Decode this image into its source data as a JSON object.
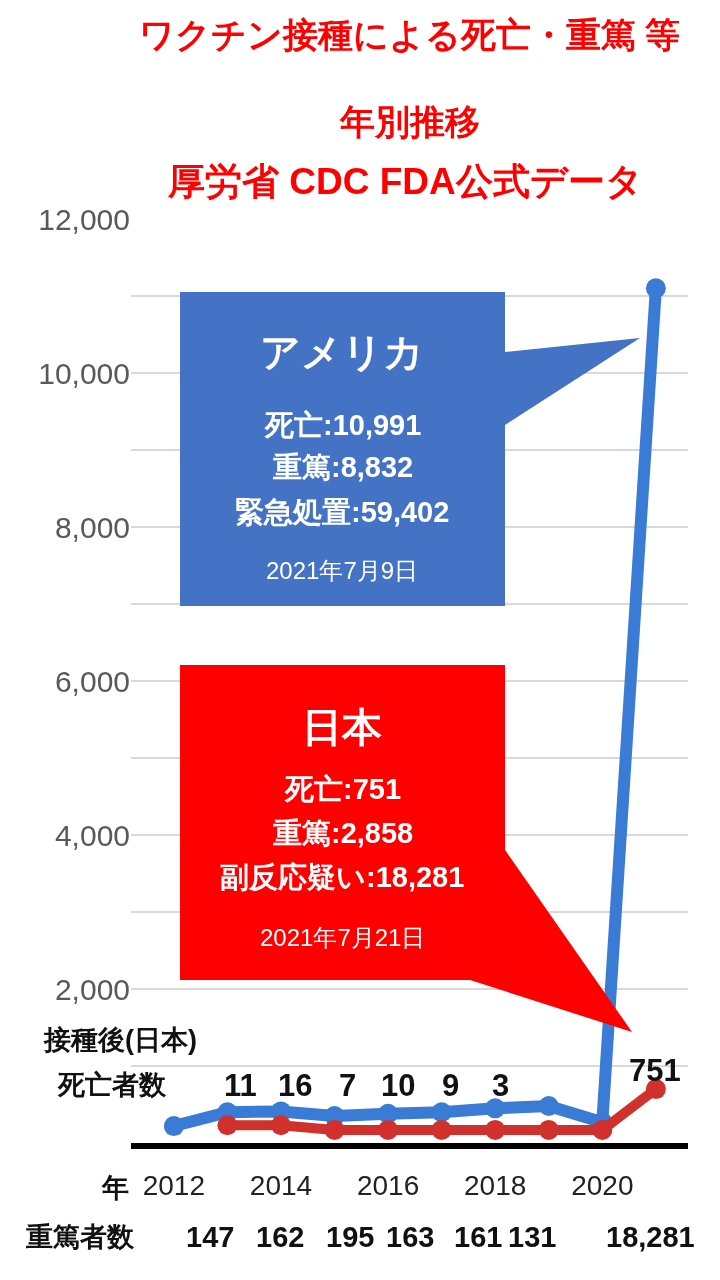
{
  "chart_data": {
    "type": "line",
    "title": "ワクチン接種による死亡・重篤 等",
    "subtitle": "年別推移",
    "x": [
      2012,
      2013,
      2014,
      2015,
      2016,
      2017,
      2018,
      2019,
      2020,
      2021
    ],
    "series": [
      {
        "color": "#3a7bd5",
        "values": [
          220,
          400,
          410,
          350,
          380,
          400,
          450,
          480,
          270,
          11100
        ]
      },
      {
        "color": "#d0312d",
        "values": [
          null,
          230,
          230,
          170,
          170,
          170,
          170,
          170,
          170,
          700
        ]
      }
    ],
    "xlim": [
      2011.2,
      2021.6
    ],
    "xticks": [
      {
        "value": 2012,
        "label": "2012"
      },
      {
        "value": 2014,
        "label": "2014"
      },
      {
        "value": 2016,
        "label": "2016"
      },
      {
        "value": 2018,
        "label": "2018"
      },
      {
        "value": 2020,
        "label": "2020"
      }
    ],
    "ylim": [
      0,
      12000
    ],
    "yticks": [
      {
        "value": 0,
        "label": null
      },
      {
        "value": 1000,
        "label": null
      },
      {
        "value": 2000,
        "label": "2,000"
      },
      {
        "value": 3000,
        "label": null
      },
      {
        "value": 4000,
        "label": "4,000"
      },
      {
        "value": 5000,
        "label": null
      },
      {
        "value": 6000,
        "label": "6,000"
      },
      {
        "value": 7000,
        "label": null
      },
      {
        "value": 8000,
        "label": "8,000"
      },
      {
        "value": 9000,
        "label": null
      },
      {
        "value": 10000,
        "label": "10,000"
      },
      {
        "value": 11000,
        "label": null
      },
      {
        "value": 12000,
        "label": "12,000"
      }
    ],
    "grid": "y",
    "marker": "circle",
    "line_style": "solid",
    "annotations": [
      "厚労省 CDC FDA公式データ",
      "アメリカ",
      "死亡:10,991",
      "重篤:8,832",
      "緊急処置:59,402",
      "2021年7月9日",
      "日本",
      "死亡:751",
      "重篤:2,858",
      "副反応疑い:18,281",
      "2021年7月21日",
      "接種後(日本)",
      "死亡者数",
      "年",
      "重篤者数",
      "11",
      "16",
      "7",
      "10",
      "9",
      "3",
      "751",
      "147",
      "162",
      "195",
      "163",
      "161",
      "131",
      "18,281"
    ]
  }
}
